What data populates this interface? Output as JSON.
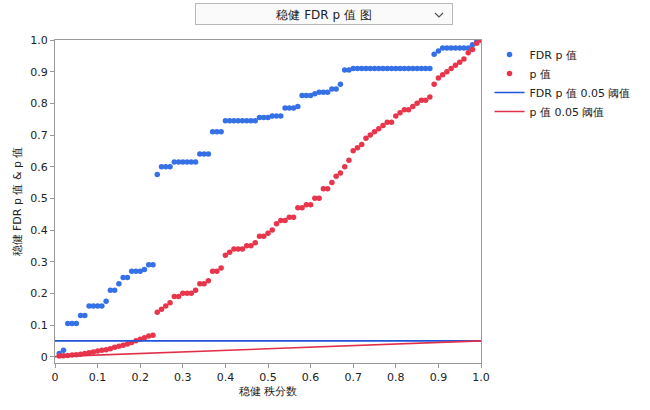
{
  "chart_data": {
    "type": "scatter",
    "title": "稳健 FDR p 值 图",
    "x_label": "稳健 秩分数",
    "y_label": "稳健 FDR p 值 & p 值",
    "xlim": [
      0,
      1
    ],
    "ylim": [
      -0.02,
      1
    ],
    "xticks": [
      0,
      0.1,
      0.2,
      0.3,
      0.4,
      0.5,
      0.6,
      0.7,
      0.8,
      0.9,
      {
        "value": 1,
        "label": "1.0"
      }
    ],
    "yticks": [
      0,
      0.1,
      0.2,
      0.3,
      0.4,
      0.5,
      0.6,
      0.7,
      0.8,
      0.9,
      {
        "value": 1,
        "label": "1.0"
      }
    ],
    "grid": false,
    "legend": "top right",
    "x": [
      0.01,
      0.02,
      0.03,
      0.04,
      0.05,
      0.06,
      0.07,
      0.08,
      0.09,
      0.1,
      0.11,
      0.12,
      0.13,
      0.14,
      0.15,
      0.16,
      0.17,
      0.18,
      0.19,
      0.2,
      0.21,
      0.22,
      0.23,
      0.24,
      0.25,
      0.26,
      0.27,
      0.28,
      0.29,
      0.3,
      0.31,
      0.32,
      0.33,
      0.34,
      0.35,
      0.36,
      0.37,
      0.38,
      0.39,
      0.4,
      0.41,
      0.42,
      0.43,
      0.44,
      0.45,
      0.46,
      0.47,
      0.48,
      0.49,
      0.5,
      0.51,
      0.52,
      0.53,
      0.54,
      0.55,
      0.56,
      0.57,
      0.58,
      0.59,
      0.6,
      0.61,
      0.62,
      0.63,
      0.64,
      0.65,
      0.66,
      0.67,
      0.68,
      0.69,
      0.7,
      0.71,
      0.72,
      0.73,
      0.74,
      0.75,
      0.76,
      0.77,
      0.78,
      0.79,
      0.8,
      0.81,
      0.82,
      0.83,
      0.84,
      0.85,
      0.86,
      0.87,
      0.88,
      0.89,
      0.9,
      0.91,
      0.92,
      0.93,
      0.94,
      0.95,
      0.96,
      0.97,
      0.98,
      0.99,
      1.0
    ],
    "series": [
      {
        "name": "FDR p 值",
        "type": "scatter",
        "marker": "circle",
        "color": "#3670e6",
        "values": [
          0.01,
          0.02,
          0.105,
          0.105,
          0.105,
          0.13,
          0.13,
          0.16,
          0.16,
          0.16,
          0.16,
          0.175,
          0.21,
          0.21,
          0.23,
          0.25,
          0.25,
          0.27,
          0.27,
          0.27,
          0.275,
          0.29,
          0.29,
          0.575,
          0.6,
          0.6,
          0.6,
          0.615,
          0.615,
          0.615,
          0.615,
          0.615,
          0.615,
          0.64,
          0.64,
          0.64,
          0.71,
          0.71,
          0.71,
          0.745,
          0.745,
          0.745,
          0.745,
          0.745,
          0.745,
          0.745,
          0.745,
          0.755,
          0.755,
          0.755,
          0.76,
          0.76,
          0.76,
          0.785,
          0.785,
          0.785,
          0.79,
          0.825,
          0.825,
          0.825,
          0.83,
          0.835,
          0.835,
          0.835,
          0.845,
          0.845,
          0.86,
          0.905,
          0.905,
          0.91,
          0.91,
          0.91,
          0.91,
          0.91,
          0.91,
          0.91,
          0.91,
          0.91,
          0.91,
          0.91,
          0.91,
          0.91,
          0.91,
          0.91,
          0.91,
          0.91,
          0.91,
          0.91,
          0.955,
          0.965,
          0.975,
          0.975,
          0.975,
          0.975,
          0.975,
          0.975,
          0.975,
          0.985,
          0.995,
          1.0
        ]
      },
      {
        "name": "p 值",
        "type": "scatter",
        "marker": "circle",
        "color": "#e8354c",
        "values": [
          0.002,
          0.003,
          0.004,
          0.005,
          0.006,
          0.008,
          0.01,
          0.012,
          0.015,
          0.018,
          0.02,
          0.022,
          0.025,
          0.03,
          0.033,
          0.036,
          0.04,
          0.045,
          0.05,
          0.055,
          0.06,
          0.065,
          0.068,
          0.14,
          0.15,
          0.16,
          0.17,
          0.19,
          0.19,
          0.2,
          0.2,
          0.2,
          0.21,
          0.23,
          0.23,
          0.24,
          0.27,
          0.27,
          0.28,
          0.32,
          0.33,
          0.34,
          0.34,
          0.34,
          0.35,
          0.35,
          0.36,
          0.38,
          0.38,
          0.39,
          0.4,
          0.42,
          0.43,
          0.43,
          0.44,
          0.44,
          0.47,
          0.47,
          0.48,
          0.48,
          0.5,
          0.5,
          0.53,
          0.53,
          0.55,
          0.57,
          0.58,
          0.6,
          0.62,
          0.65,
          0.66,
          0.67,
          0.69,
          0.7,
          0.71,
          0.72,
          0.73,
          0.74,
          0.74,
          0.76,
          0.77,
          0.78,
          0.78,
          0.79,
          0.8,
          0.81,
          0.81,
          0.82,
          0.86,
          0.88,
          0.89,
          0.9,
          0.91,
          0.92,
          0.93,
          0.94,
          0.96,
          0.97,
          0.99,
          1.0
        ]
      },
      {
        "name": "FDR p 值 0.05 阈值",
        "type": "line",
        "line_style": "solid",
        "color": "#1f55d8",
        "x": [
          0,
          1
        ],
        "values": [
          0.05,
          0.05
        ]
      },
      {
        "name": "p 值 0.05 阈值",
        "type": "line",
        "line_style": "solid",
        "color": "#e0304a",
        "x": [
          0,
          1
        ],
        "values": [
          0,
          0.05
        ]
      }
    ]
  }
}
